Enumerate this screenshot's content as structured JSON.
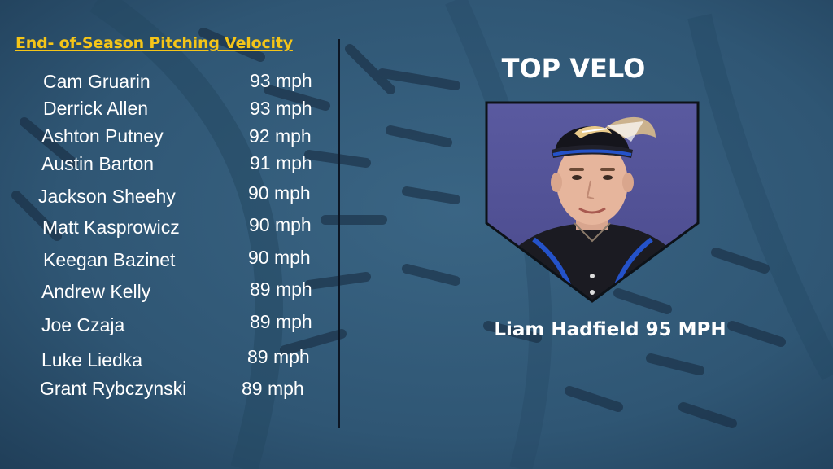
{
  "title": "End- of-Season Pitching Velocity",
  "players": [
    {
      "name": "Cam Gruarin",
      "velo": "93 mph"
    },
    {
      "name": "Derrick Allen",
      "velo": "93 mph"
    },
    {
      "name": "Ashton Putney",
      "velo": "92 mph"
    },
    {
      "name": "Austin Barton",
      "velo": "91 mph"
    },
    {
      "name": "Jackson Sheehy",
      "velo": "90 mph"
    },
    {
      "name": "Matt Kasprowicz",
      "velo": "90 mph"
    },
    {
      "name": "Keegan Bazinet",
      "velo": "90 mph"
    },
    {
      "name": "Andrew Kelly",
      "velo": "89 mph"
    },
    {
      "name": "Joe Czaja",
      "velo": "89 mph"
    },
    {
      "name": "Luke Liedka",
      "velo": "89 mph"
    },
    {
      "name": "Grant Rybczynski",
      "velo": "89 mph"
    }
  ],
  "feature": {
    "heading": "TOP VELO",
    "caption": "Liam Hadfield 95 MPH"
  },
  "colors": {
    "background": "#2f5674",
    "title": "#f5c518",
    "text": "#ffffff"
  },
  "icons": {
    "photo": "player-headshot",
    "background": "baseball-stitching"
  }
}
